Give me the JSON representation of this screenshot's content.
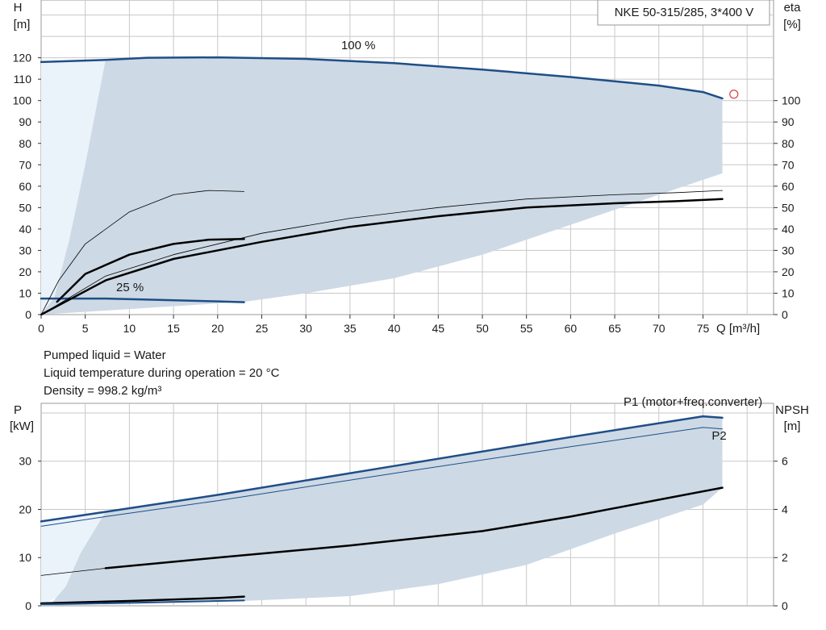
{
  "chart_data": [
    {
      "type": "line",
      "title": "NKE 50-315/285, 3*400 V",
      "x_axis": {
        "label": "Q [m³/h]",
        "range": [
          0,
          83
        ],
        "ticks": [
          0,
          5,
          10,
          15,
          20,
          25,
          30,
          35,
          40,
          45,
          50,
          55,
          60,
          65,
          70,
          75
        ]
      },
      "y_left": {
        "label_top": "H",
        "label_unit": "[m]",
        "range": [
          0,
          147
        ],
        "ticks": [
          0,
          10,
          20,
          30,
          40,
          50,
          60,
          70,
          80,
          90,
          100,
          110,
          120
        ]
      },
      "y_right": {
        "label_top": "eta",
        "label_unit": "[%]",
        "range": [
          0,
          147
        ],
        "ticks": [
          0,
          10,
          20,
          30,
          40,
          50,
          60,
          70,
          80,
          90,
          100
        ]
      },
      "grid": true,
      "colors": {
        "area": "#cdd9e5",
        "area_light": "#eaf2fa",
        "curve_blue": "#1f4e87",
        "curve_black": "#000000",
        "marker": "#d84040"
      },
      "annotations": [
        {
          "text": "100 %",
          "x": 34,
          "y": 124
        },
        {
          "text": "25 %",
          "x": 8.5,
          "y": 11
        }
      ],
      "operating_marker": {
        "x": 78.5,
        "y": 103
      },
      "envelope_upper": {
        "x": [
          7.3,
          12,
          20,
          30,
          40,
          50,
          60,
          70,
          75,
          77.2
        ],
        "y": [
          119,
          120,
          120.2,
          119.5,
          117.5,
          114.5,
          111,
          107,
          104,
          101
        ]
      },
      "envelope_lower": {
        "x": [
          77.2,
          70,
          60,
          50,
          40,
          30,
          23
        ],
        "y": [
          66,
          56,
          42,
          28,
          17,
          10,
          6
        ]
      },
      "light_region": {
        "x": [
          0,
          7.3,
          6,
          4,
          2.5,
          0
        ],
        "y": [
          118,
          119,
          80,
          40,
          10,
          0
        ]
      },
      "series": [
        {
          "name": "100 %",
          "role": "head",
          "color": "#1f4e87",
          "width": 2.5,
          "x": [
            0,
            7.3,
            12,
            20,
            30,
            40,
            50,
            60,
            70,
            75,
            77.2
          ],
          "y": [
            118,
            119,
            120,
            120.2,
            119.5,
            117.5,
            114.5,
            111,
            107,
            104,
            101
          ]
        },
        {
          "name": "25 %",
          "role": "head",
          "color": "#1f4e87",
          "width": 2.5,
          "x": [
            0,
            7.3,
            12,
            20,
            23
          ],
          "y": [
            7.5,
            7.5,
            7,
            6.2,
            5.8
          ]
        },
        {
          "role": "eta",
          "color": "#000000",
          "width": 2.5,
          "x": [
            1.8,
            5,
            10,
            15,
            19,
            23
          ],
          "y": [
            6,
            19,
            28,
            33,
            35,
            35.3
          ]
        },
        {
          "role": "eta",
          "color": "#000000",
          "width": 0.8,
          "x": [
            0,
            2,
            5,
            10,
            15,
            19,
            23
          ],
          "y": [
            0,
            16,
            33,
            48,
            56,
            58,
            57.5
          ]
        },
        {
          "role": "eta",
          "color": "#000000",
          "width": 2.5,
          "x": [
            0,
            7.3,
            15,
            25,
            35,
            45,
            55,
            65,
            72,
            77.2
          ],
          "y": [
            0,
            16,
            26,
            34,
            41,
            46,
            50,
            52,
            53,
            54
          ]
        },
        {
          "role": "eta",
          "color": "#000000",
          "width": 0.8,
          "x": [
            0,
            7.3,
            15,
            25,
            35,
            45,
            55,
            65,
            72,
            77.2
          ],
          "y": [
            0,
            18,
            28,
            38,
            45,
            50,
            54,
            56,
            57,
            58
          ]
        }
      ]
    },
    {
      "type": "line",
      "x_axis": {
        "range": [
          0,
          83
        ]
      },
      "y_left": {
        "label_top": "P",
        "label_unit": "[kW]",
        "range": [
          0,
          42
        ],
        "ticks": [
          0,
          10,
          20,
          30
        ]
      },
      "y_right": {
        "label_top": "NPSH",
        "label_unit": "[m]",
        "range": [
          0,
          8.4
        ],
        "ticks": [
          0,
          2,
          4,
          6
        ]
      },
      "grid": true,
      "envelope_upper": {
        "x": [
          7.3,
          20,
          40,
          60,
          75,
          77.2
        ],
        "y": [
          19.5,
          23,
          29,
          35,
          39.3,
          39
        ]
      },
      "envelope_lower": {
        "x": [
          77.2,
          75,
          65,
          55,
          45,
          35,
          23
        ],
        "y": [
          24.5,
          21,
          15,
          8.5,
          4.5,
          2,
          1
        ]
      },
      "light_region": {
        "x": [
          0,
          7.3,
          5,
          3,
          0
        ],
        "y": [
          17.5,
          19.5,
          10,
          3,
          0
        ]
      },
      "series": [
        {
          "name": "P1 (motor+freq.converter)",
          "role": "power",
          "color": "#1f4e87",
          "width": 2.5,
          "x": [
            0,
            7.3,
            20,
            40,
            60,
            75,
            77.2
          ],
          "y": [
            17.5,
            19.5,
            23,
            29,
            35,
            39.3,
            39
          ]
        },
        {
          "name": "P2",
          "role": "power",
          "color": "#1f4e87",
          "width": 1,
          "x": [
            0,
            7.3,
            20,
            40,
            60,
            75,
            77.2
          ],
          "y": [
            16.5,
            18.5,
            21.8,
            27.5,
            33,
            37,
            36.7
          ]
        },
        {
          "role": "npsh",
          "color": "#000000",
          "width": 2.5,
          "x": [
            7.3,
            20,
            35,
            50,
            60,
            70,
            77.2
          ],
          "y": [
            7.8,
            10,
            12.5,
            15.5,
            18.5,
            22,
            24.5
          ]
        },
        {
          "role": "npsh",
          "color": "#000000",
          "width": 0.8,
          "x": [
            0,
            7.3
          ],
          "y": [
            6.3,
            7.8
          ]
        },
        {
          "role": "power",
          "color": "#000000",
          "width": 2.5,
          "x": [
            0,
            10,
            20,
            23
          ],
          "y": [
            0.5,
            1,
            1.6,
            1.9
          ]
        },
        {
          "role": "power",
          "color": "#1f4e87",
          "width": 2,
          "x": [
            0,
            10,
            20,
            23
          ],
          "y": [
            0.3,
            0.6,
            1,
            1.1
          ]
        }
      ],
      "annotations": [
        {
          "text": "P1 (motor+freq.converter)",
          "x": 66,
          "y": 41.5
        },
        {
          "text": "P2",
          "x": 76,
          "y": 34.5
        }
      ]
    }
  ],
  "info": {
    "liquid": "Pumped liquid = Water",
    "temperature": "Liquid temperature during operation = 20 °C",
    "density": "Density = 998.2 kg/m³"
  }
}
